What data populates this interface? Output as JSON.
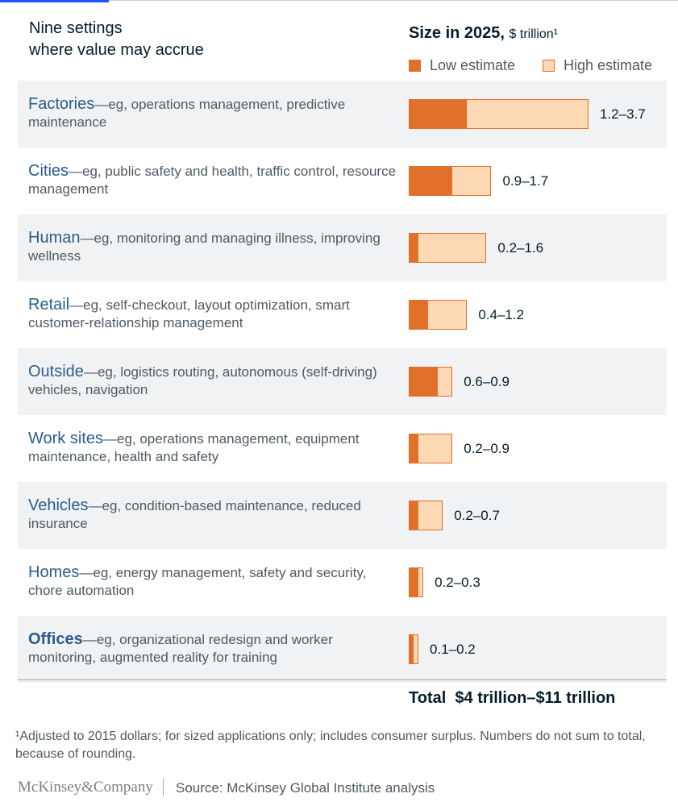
{
  "header": {
    "left_line1": "Nine settings",
    "left_line2": "where value may accrue",
    "right_title": "Size in 2025,",
    "right_unit": "$ trillion¹"
  },
  "legend": {
    "low": "Low estimate",
    "high": "High estimate"
  },
  "colors": {
    "low": "#e0702a",
    "high": "#fdd8b5",
    "name": "#2a5d8c",
    "shade": "#f0f2f3"
  },
  "chart_data": {
    "type": "bar",
    "title": "Size in 2025, $ trillion¹",
    "xlim": [
      0,
      3.7
    ],
    "categories": [
      "Factories",
      "Cities",
      "Human",
      "Retail",
      "Outside",
      "Work sites",
      "Vehicles",
      "Homes",
      "Offices"
    ],
    "series": [
      {
        "name": "Low estimate",
        "values": [
          1.2,
          0.9,
          0.2,
          0.4,
          0.6,
          0.2,
          0.2,
          0.2,
          0.1
        ]
      },
      {
        "name": "High estimate",
        "values": [
          3.7,
          1.7,
          1.6,
          1.2,
          0.9,
          0.9,
          0.7,
          0.3,
          0.2
        ]
      }
    ],
    "rows": [
      {
        "name": "Factories",
        "desc": "—eg, operations management, predictive maintenance",
        "low": 1.2,
        "high": 3.7,
        "label": "1.2–3.7"
      },
      {
        "name": "Cities",
        "desc": "—eg, public safety and health, traffic control, resource management",
        "low": 0.9,
        "high": 1.7,
        "label": "0.9–1.7"
      },
      {
        "name": "Human",
        "desc": "—eg, monitoring and managing illness, improving wellness",
        "low": 0.2,
        "high": 1.6,
        "label": "0.2–1.6"
      },
      {
        "name": "Retail",
        "desc": "—eg, self-checkout, layout optimization, smart customer-relationship management",
        "low": 0.4,
        "high": 1.2,
        "label": "0.4–1.2"
      },
      {
        "name": "Outside",
        "desc": "—eg, logistics routing, autonomous (self-driving) vehicles, navigation",
        "low": 0.6,
        "high": 0.9,
        "label": "0.6–0.9"
      },
      {
        "name": "Work sites",
        "desc": "—eg, operations management, equipment maintenance, health and safety",
        "low": 0.2,
        "high": 0.9,
        "label": "0.2–0.9"
      },
      {
        "name": "Vehicles",
        "desc": "—eg, condition-based maintenance, reduced insurance",
        "low": 0.2,
        "high": 0.7,
        "label": "0.2–0.7"
      },
      {
        "name": "Homes",
        "desc": "—eg, energy management, safety and security, chore automation",
        "low": 0.2,
        "high": 0.3,
        "label": "0.2–0.3"
      },
      {
        "name": "Offices",
        "desc": "—eg, organizational redesign and worker monitoring, augmented reality for training",
        "low": 0.1,
        "high": 0.2,
        "label": "0.1–0.2"
      }
    ],
    "total_label": "Total",
    "total_value": "$4 trillion–$11 trillion"
  },
  "footnote": "¹Adjusted to 2015 dollars; for sized applications only; includes consumer surplus. Numbers do not sum to total, because of rounding.",
  "brand": "McKinsey&Company",
  "source": "Source: McKinsey Global Institute analysis"
}
